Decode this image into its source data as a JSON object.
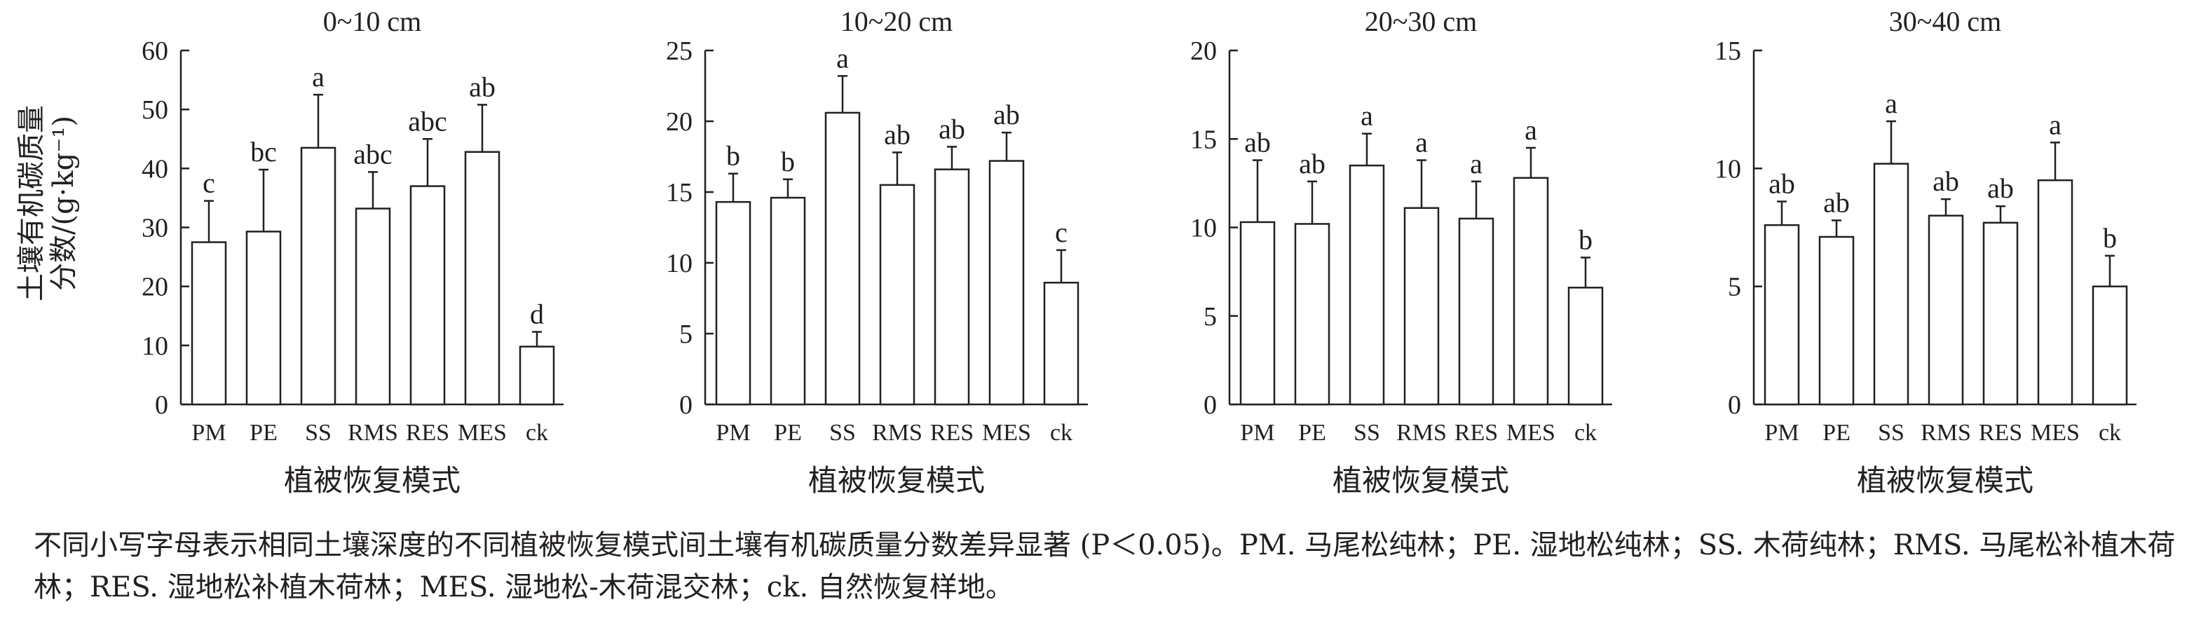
{
  "figure": {
    "ylabel_line1": "土壤有机碳质量",
    "ylabel_line2": "分数/(g·kg⁻¹)",
    "caption": "不同小写字母表示相同土壤深度的不同植被恢复模式间土壤有机碳质量分数差异显著 (P＜0.05)。PM. 马尾松纯林；PE. 湿地松纯林；SS. 木荷纯林；RMS. 马尾松补植木荷林；RES. 湿地松补植木荷林；MES. 湿地松-木荷混交林；ck. 自然恢复样地。"
  },
  "chart_data": [
    {
      "type": "bar",
      "title": "0~10 cm",
      "xlabel": "植被恢复模式",
      "ylabel": "土壤有机碳质量分数/(g·kg⁻¹)",
      "categories": [
        "PM",
        "PE",
        "SS",
        "RMS",
        "RES",
        "MES",
        "ck"
      ],
      "values": [
        27.5,
        29.3,
        43.5,
        33.2,
        37.0,
        42.8,
        9.8
      ],
      "errors": [
        7.0,
        10.5,
        9.0,
        6.2,
        8.0,
        8.0,
        2.5
      ],
      "significance": [
        "c",
        "bc",
        "a",
        "abc",
        "abc",
        "ab",
        "d"
      ],
      "ylim": [
        0,
        60
      ],
      "yticks": [
        0,
        10,
        20,
        30,
        40,
        50,
        60
      ]
    },
    {
      "type": "bar",
      "title": "10~20 cm",
      "xlabel": "植被恢复模式",
      "categories": [
        "PM",
        "PE",
        "SS",
        "RMS",
        "RES",
        "MES",
        "ck"
      ],
      "values": [
        14.3,
        14.6,
        20.6,
        15.5,
        16.6,
        17.2,
        8.6
      ],
      "errors": [
        2.0,
        1.3,
        2.6,
        2.3,
        1.6,
        2.0,
        2.3
      ],
      "significance": [
        "b",
        "b",
        "a",
        "ab",
        "ab",
        "ab",
        "c"
      ],
      "ylim": [
        0,
        25
      ],
      "yticks": [
        0,
        5,
        10,
        15,
        20,
        25
      ]
    },
    {
      "type": "bar",
      "title": "20~30 cm",
      "xlabel": "植被恢复模式",
      "categories": [
        "PM",
        "PE",
        "SS",
        "RMS",
        "RES",
        "MES",
        "ck"
      ],
      "values": [
        10.3,
        10.2,
        13.5,
        11.1,
        10.5,
        12.8,
        6.6
      ],
      "errors": [
        3.5,
        2.4,
        1.8,
        2.7,
        2.1,
        1.7,
        1.7
      ],
      "significance": [
        "ab",
        "ab",
        "a",
        "a",
        "a",
        "a",
        "b"
      ],
      "ylim": [
        0,
        20
      ],
      "yticks": [
        0,
        5,
        10,
        15,
        20
      ]
    },
    {
      "type": "bar",
      "title": "30~40 cm",
      "xlabel": "植被恢复模式",
      "categories": [
        "PM",
        "PE",
        "SS",
        "RMS",
        "RES",
        "MES",
        "ck"
      ],
      "values": [
        7.6,
        7.1,
        10.2,
        8.0,
        7.7,
        9.5,
        5.0
      ],
      "errors": [
        1.0,
        0.7,
        1.8,
        0.7,
        0.7,
        1.6,
        1.3
      ],
      "significance": [
        "ab",
        "ab",
        "a",
        "ab",
        "ab",
        "a",
        "b"
      ],
      "ylim": [
        0,
        15
      ],
      "yticks": [
        0,
        5,
        10,
        15
      ]
    }
  ]
}
